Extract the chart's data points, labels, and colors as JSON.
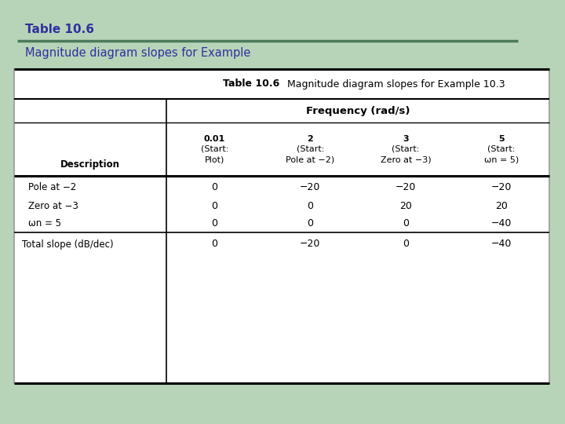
{
  "title_label": "Table 10.6",
  "subtitle": "Magnitude diagram slopes for Example",
  "table_title_bold": "Table 10.6",
  "table_title_rest": "  Magnitude diagram slopes for Example 10.3",
  "col_headers": [
    [
      "0.01",
      "(Start:",
      "Plot)"
    ],
    [
      "2",
      "(Start:",
      "Pole at −2)"
    ],
    [
      "3",
      "(Start:",
      "Zero at −3)"
    ],
    [
      "5",
      "(Start:",
      "ωn = 5)"
    ]
  ],
  "row_labels": [
    "Pole at −2",
    "Zero at −3",
    "ωn = 5",
    "Total slope (dB/dec)"
  ],
  "data": [
    [
      "0",
      "−20",
      "−20",
      "−20"
    ],
    [
      "0",
      "0",
      "20",
      "20"
    ],
    [
      "0",
      "0",
      "0",
      "−40"
    ],
    [
      "0",
      "−20",
      "0",
      "−40"
    ]
  ],
  "bg_color": "#b8d4b8",
  "table_bg": "#ffffff",
  "title_color": "#3030a0",
  "subtitle_color": "#3030a0",
  "divider_line_color": "#4a7a5a"
}
